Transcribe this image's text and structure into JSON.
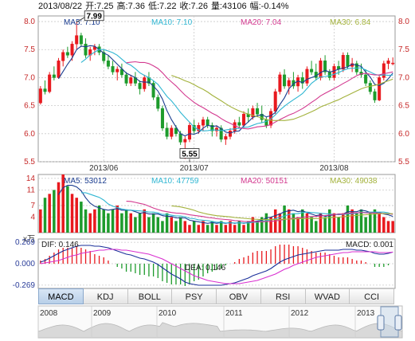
{
  "info": {
    "date": "2013/08/22",
    "open": "开:7.25",
    "high": "高:7.36",
    "low": "低:7.22",
    "close": "收:7.26",
    "volume": "量:43106",
    "change": "幅:-0.14%"
  },
  "tabs": [
    "MACD",
    "KDJ",
    "BOLL",
    "PSY",
    "OBV",
    "RSI",
    "WVAD",
    "CCI"
  ],
  "active_tab": "MACD",
  "colors": {
    "up": "#e8191e",
    "down": "#1d9b2c",
    "ma5": "#1a3c8f",
    "ma10": "#2fb6d2",
    "ma20": "#d3398f",
    "ma30": "#a3b23c",
    "grid": "#c9c9c9",
    "axis_text": "#c62828",
    "macd_up": "#e8191e",
    "macd_down": "#1d9b2c",
    "dif": "#1a2f9a",
    "dea": "#d92fd0",
    "nav": "#b9b9b9"
  },
  "chart_data": [
    {
      "type": "candlestick",
      "title": "",
      "ma_labels": [
        {
          "key": "ma5",
          "text": "MA5: 7.10"
        },
        {
          "key": "ma10",
          "text": "MA10: 7.10"
        },
        {
          "key": "ma20",
          "text": "MA20: 7.04"
        },
        {
          "key": "ma30",
          "text": "MA30: 6.84"
        }
      ],
      "y_ticks": [
        "8.0",
        "7.5",
        "7.0",
        "6.5",
        "6.0",
        "5.5"
      ],
      "y_range": [
        5.5,
        8.1
      ],
      "x_tick_labels": [
        "2013/06",
        "2013/07",
        "2013/08"
      ],
      "x_tick_index": [
        14,
        34,
        65
      ],
      "max_label": "7.99",
      "max_index": 8,
      "min_label": "5.55",
      "min_index": 33,
      "candles": [
        [
          6.55,
          6.85,
          6.52,
          6.8
        ],
        [
          6.8,
          6.95,
          6.7,
          6.75
        ],
        [
          6.75,
          7.1,
          6.72,
          7.05
        ],
        [
          7.05,
          7.2,
          6.95,
          7.0
        ],
        [
          7.0,
          7.35,
          6.98,
          7.3
        ],
        [
          7.3,
          7.5,
          7.2,
          7.45
        ],
        [
          7.45,
          7.55,
          7.35,
          7.4
        ],
        [
          7.4,
          7.65,
          7.3,
          7.6
        ],
        [
          7.6,
          7.99,
          7.5,
          7.75
        ],
        [
          7.75,
          7.8,
          7.55,
          7.6
        ],
        [
          7.6,
          7.7,
          7.35,
          7.4
        ],
        [
          7.4,
          7.55,
          7.3,
          7.5
        ],
        [
          7.5,
          7.6,
          7.4,
          7.55
        ],
        [
          7.55,
          7.6,
          7.4,
          7.45
        ],
        [
          7.45,
          7.5,
          7.25,
          7.3
        ],
        [
          7.3,
          7.4,
          7.15,
          7.2
        ],
        [
          7.2,
          7.3,
          7.05,
          7.1
        ],
        [
          7.1,
          7.2,
          6.95,
          7.15
        ],
        [
          7.15,
          7.25,
          7.0,
          7.05
        ],
        [
          7.05,
          7.1,
          6.85,
          6.9
        ],
        [
          6.9,
          7.05,
          6.85,
          7.0
        ],
        [
          7.0,
          7.1,
          6.85,
          6.9
        ],
        [
          6.9,
          6.95,
          6.7,
          6.8
        ],
        [
          6.8,
          7.05,
          6.75,
          7.0
        ],
        [
          7.0,
          7.1,
          6.85,
          6.9
        ],
        [
          6.9,
          6.95,
          6.6,
          6.65
        ],
        [
          6.65,
          6.7,
          6.4,
          6.45
        ],
        [
          6.45,
          6.5,
          6.05,
          6.1
        ],
        [
          6.1,
          6.2,
          5.9,
          5.95
        ],
        [
          5.95,
          6.15,
          5.9,
          6.1
        ],
        [
          6.1,
          6.15,
          5.95,
          6.0
        ],
        [
          6.0,
          6.05,
          5.8,
          5.85
        ],
        [
          5.85,
          5.95,
          5.55,
          5.9
        ],
        [
          5.9,
          6.2,
          5.85,
          6.15
        ],
        [
          6.15,
          6.25,
          6.0,
          6.05
        ],
        [
          6.05,
          6.2,
          6.0,
          6.15
        ],
        [
          6.15,
          6.3,
          6.05,
          6.25
        ],
        [
          6.25,
          6.3,
          6.1,
          6.15
        ],
        [
          6.15,
          6.2,
          5.95,
          6.05
        ],
        [
          6.05,
          6.15,
          5.95,
          6.1
        ],
        [
          6.1,
          6.15,
          5.85,
          5.9
        ],
        [
          5.9,
          6.0,
          5.8,
          5.95
        ],
        [
          5.95,
          6.1,
          5.9,
          6.05
        ],
        [
          6.05,
          6.25,
          6.0,
          6.2
        ],
        [
          6.2,
          6.3,
          6.1,
          6.15
        ],
        [
          6.15,
          6.4,
          6.1,
          6.35
        ],
        [
          6.35,
          6.45,
          6.2,
          6.3
        ],
        [
          6.3,
          6.5,
          6.25,
          6.45
        ],
        [
          6.45,
          6.55,
          6.3,
          6.35
        ],
        [
          6.35,
          6.5,
          6.2,
          6.25
        ],
        [
          6.25,
          6.3,
          6.1,
          6.15
        ],
        [
          6.15,
          6.45,
          6.1,
          6.4
        ],
        [
          6.4,
          6.8,
          6.35,
          6.75
        ],
        [
          6.75,
          7.1,
          6.7,
          7.05
        ],
        [
          7.05,
          7.15,
          6.8,
          6.85
        ],
        [
          6.85,
          7.0,
          6.7,
          6.95
        ],
        [
          6.95,
          7.1,
          6.8,
          6.85
        ],
        [
          6.85,
          7.05,
          6.75,
          7.0
        ],
        [
          7.0,
          7.1,
          6.8,
          6.9
        ],
        [
          6.9,
          7.2,
          6.85,
          7.15
        ],
        [
          7.15,
          7.3,
          7.05,
          7.1
        ],
        [
          7.1,
          7.25,
          6.95,
          7.0
        ],
        [
          7.0,
          7.35,
          6.95,
          7.3
        ],
        [
          7.3,
          7.4,
          7.05,
          7.1
        ],
        [
          7.1,
          7.15,
          6.95,
          7.0
        ],
        [
          7.0,
          7.25,
          6.95,
          7.2
        ],
        [
          7.2,
          7.3,
          7.05,
          7.15
        ],
        [
          7.15,
          7.45,
          7.1,
          7.4
        ],
        [
          7.4,
          7.45,
          7.15,
          7.2
        ],
        [
          7.2,
          7.35,
          7.1,
          7.25
        ],
        [
          7.25,
          7.3,
          7.05,
          7.1
        ],
        [
          7.1,
          7.25,
          7.0,
          7.05
        ],
        [
          7.05,
          7.15,
          6.85,
          6.9
        ],
        [
          6.9,
          6.95,
          6.7,
          6.75
        ],
        [
          6.75,
          6.8,
          6.55,
          6.6
        ],
        [
          6.6,
          7.05,
          6.58,
          7.0
        ],
        [
          7.0,
          7.3,
          6.95,
          7.25
        ],
        [
          7.25,
          7.35,
          7.15,
          7.3
        ],
        [
          7.25,
          7.36,
          7.22,
          7.26
        ]
      ]
    },
    {
      "type": "bar",
      "title": "",
      "ma_labels": [
        {
          "key": "ma5",
          "text": "MA5: 53012"
        },
        {
          "key": "ma10",
          "text": "MA10: 47759"
        },
        {
          "key": "ma20",
          "text": "MA20: 50151"
        },
        {
          "key": "ma30",
          "text": "MA30: 49038"
        }
      ],
      "y_ticks": [
        "14",
        "11",
        "7",
        "4"
      ],
      "unit_label": "x万",
      "y_range": [
        0,
        15
      ],
      "values": [
        6,
        9,
        10,
        11,
        13,
        15,
        12,
        10,
        9,
        8,
        6,
        5,
        6,
        7,
        6,
        5,
        6,
        7,
        5,
        6,
        5,
        4,
        5,
        6,
        4,
        5,
        4,
        3,
        5,
        4,
        3,
        4,
        3,
        2,
        3,
        2,
        3,
        2,
        3,
        2,
        3,
        2,
        3,
        2,
        3,
        2,
        3,
        4,
        3,
        4,
        5,
        4,
        6,
        5,
        7,
        6,
        5,
        4,
        6,
        5,
        4,
        3,
        5,
        4,
        6,
        5,
        4,
        5,
        7,
        6,
        5,
        6,
        4,
        5,
        6,
        5,
        4,
        3,
        3
      ]
    },
    {
      "type": "bar",
      "title": "",
      "dif_label": "DIF: 0.146",
      "dea_label": "DEA: 0.146",
      "macd_label": "MACD: 0.001",
      "y_ticks": [
        "0.269",
        "0.000",
        "-0.269"
      ],
      "y_range": [
        -0.31,
        0.31
      ],
      "dif": [
        0.02,
        0.04,
        0.07,
        0.1,
        0.13,
        0.16,
        0.18,
        0.2,
        0.22,
        0.23,
        0.23,
        0.23,
        0.22,
        0.22,
        0.21,
        0.2,
        0.18,
        0.16,
        0.14,
        0.12,
        0.11,
        0.09,
        0.07,
        0.06,
        0.04,
        0.02,
        -0.01,
        -0.05,
        -0.09,
        -0.13,
        -0.16,
        -0.19,
        -0.23,
        -0.25,
        -0.26,
        -0.27,
        -0.27,
        -0.27,
        -0.27,
        -0.27,
        -0.27,
        -0.26,
        -0.25,
        -0.24,
        -0.22,
        -0.2,
        -0.18,
        -0.15,
        -0.13,
        -0.11,
        -0.09,
        -0.06,
        -0.02,
        0.02,
        0.05,
        0.07,
        0.09,
        0.11,
        0.12,
        0.13,
        0.14,
        0.15,
        0.16,
        0.17,
        0.17,
        0.17,
        0.17,
        0.18,
        0.18,
        0.18,
        0.17,
        0.17,
        0.16,
        0.15,
        0.13,
        0.12,
        0.12,
        0.13,
        0.146
      ],
      "dea": [
        0.0,
        0.01,
        0.02,
        0.03,
        0.04,
        0.06,
        0.08,
        0.1,
        0.11,
        0.13,
        0.14,
        0.15,
        0.16,
        0.17,
        0.17,
        0.18,
        0.18,
        0.18,
        0.17,
        0.17,
        0.16,
        0.15,
        0.14,
        0.13,
        0.12,
        0.1,
        0.08,
        0.06,
        0.03,
        0.0,
        -0.03,
        -0.06,
        -0.09,
        -0.12,
        -0.15,
        -0.17,
        -0.19,
        -0.21,
        -0.22,
        -0.23,
        -0.24,
        -0.25,
        -0.25,
        -0.25,
        -0.25,
        -0.24,
        -0.23,
        -0.22,
        -0.21,
        -0.19,
        -0.17,
        -0.15,
        -0.13,
        -0.1,
        -0.07,
        -0.05,
        -0.02,
        0.0,
        0.02,
        0.04,
        0.06,
        0.08,
        0.09,
        0.1,
        0.11,
        0.12,
        0.13,
        0.14,
        0.14,
        0.15,
        0.15,
        0.15,
        0.15,
        0.15,
        0.15,
        0.14,
        0.14,
        0.14,
        0.146
      ]
    }
  ],
  "navigator": {
    "years": [
      "2008",
      "2009",
      "2010",
      "2011",
      "2012",
      "2013"
    ]
  }
}
